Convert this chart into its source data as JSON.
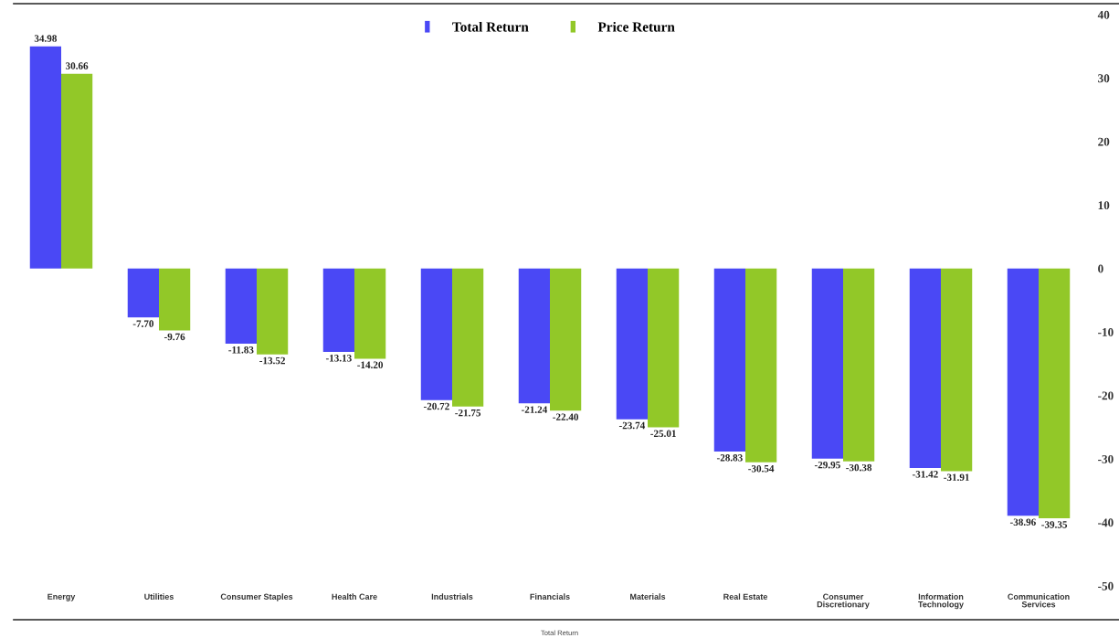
{
  "chart_data": {
    "type": "bar",
    "categories": [
      "Energy",
      "Utilities",
      "Consumer Staples",
      "Health Care",
      "Industrials",
      "Financials",
      "Materials",
      "Real Estate",
      "Consumer\nDiscretionary",
      "Information\nTechnology",
      "Communication\nServices"
    ],
    "series": [
      {
        "name": "Total Return",
        "color": "#4a48f5",
        "values": [
          34.98,
          -7.7,
          -11.83,
          -13.13,
          -20.72,
          -21.24,
          -23.74,
          -28.83,
          -29.95,
          -31.42,
          -38.96
        ],
        "value_labels": [
          "34.98",
          "-7.70",
          "-11.83",
          "-13.13",
          "-20.72",
          "-21.24",
          "-23.74",
          "-28.83",
          "-29.95",
          "-31.42",
          "-38.96"
        ]
      },
      {
        "name": "Price Return",
        "color": "#92c828",
        "values": [
          30.66,
          -9.76,
          -13.52,
          -14.2,
          -21.75,
          -22.4,
          -25.01,
          -30.54,
          -30.38,
          -31.91,
          -39.35
        ],
        "value_labels": [
          "30.66",
          "-9.76",
          "-13.52",
          "-14.20",
          "-21.75",
          "-22.40",
          "-25.01",
          "-30.54",
          "-30.38",
          "-31.91",
          "-39.35"
        ]
      }
    ],
    "ylim": [
      -50,
      40
    ],
    "yticks": [
      -50,
      -40,
      -30,
      -20,
      -10,
      0,
      10,
      20,
      30,
      40
    ],
    "legend": "top",
    "annotations": [
      "Total Return"
    ]
  }
}
